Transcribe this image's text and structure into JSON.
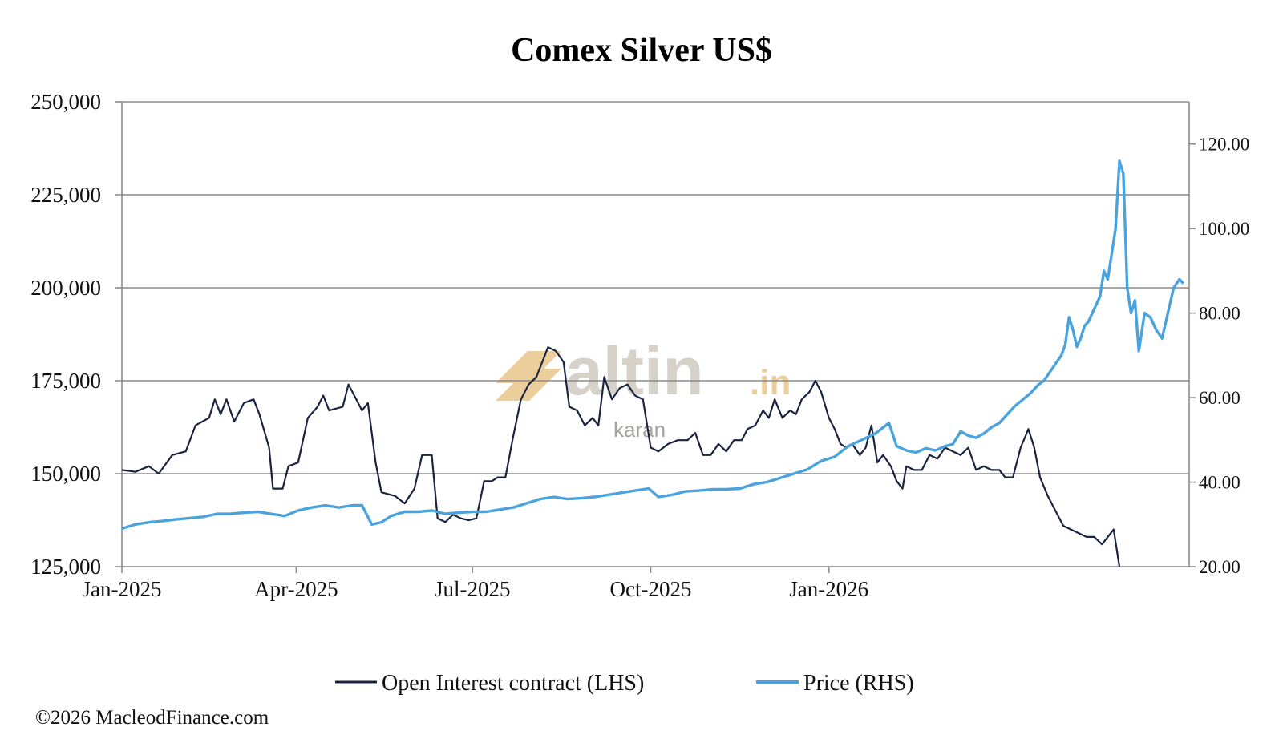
{
  "chart_data": {
    "type": "line",
    "title": "Comex Silver US$",
    "x_ticks": [
      "Jan-2025",
      "Apr-2025",
      "Jul-2025",
      "Oct-2025",
      "Jan-2026"
    ],
    "y_left": {
      "ylim": [
        125000,
        250000
      ],
      "ticks": [
        125000,
        150000,
        175000,
        200000,
        225000,
        250000
      ],
      "tick_labels": [
        "125,000",
        "150,000",
        "175,000",
        "200,000",
        "225,000",
        "250,000"
      ]
    },
    "y_right": {
      "ylim": [
        20,
        130
      ],
      "ticks": [
        20,
        40,
        60,
        80,
        100,
        120
      ],
      "tick_labels": [
        "20.00",
        "40.00",
        "60.00",
        "80.00",
        "100.00",
        "120.00"
      ]
    },
    "grid": true,
    "legend_position": "bottom",
    "series": [
      {
        "name": "Open Interest contract (LHS)",
        "axis": "left",
        "color": "#1a2440",
        "points": [
          [
            "2025-01-01",
            151000
          ],
          [
            "2025-01-08",
            150500
          ],
          [
            "2025-01-15",
            152000
          ],
          [
            "2025-01-20",
            150000
          ],
          [
            "2025-01-27",
            155000
          ],
          [
            "2025-02-03",
            156000
          ],
          [
            "2025-02-08",
            163000
          ],
          [
            "2025-02-15",
            165000
          ],
          [
            "2025-02-18",
            170000
          ],
          [
            "2025-02-21",
            166000
          ],
          [
            "2025-02-24",
            170000
          ],
          [
            "2025-02-28",
            164000
          ],
          [
            "2025-03-05",
            169000
          ],
          [
            "2025-03-10",
            170000
          ],
          [
            "2025-03-13",
            166000
          ],
          [
            "2025-03-18",
            157000
          ],
          [
            "2025-03-20",
            146000
          ],
          [
            "2025-03-25",
            146000
          ],
          [
            "2025-03-28",
            152000
          ],
          [
            "2025-04-02",
            153000
          ],
          [
            "2025-04-07",
            165000
          ],
          [
            "2025-04-12",
            168000
          ],
          [
            "2025-04-15",
            171000
          ],
          [
            "2025-04-18",
            167000
          ],
          [
            "2025-04-25",
            168000
          ],
          [
            "2025-04-28",
            174000
          ],
          [
            "2025-05-02",
            170000
          ],
          [
            "2025-05-05",
            167000
          ],
          [
            "2025-05-08",
            169000
          ],
          [
            "2025-05-12",
            153000
          ],
          [
            "2025-05-15",
            145000
          ],
          [
            "2025-05-22",
            144000
          ],
          [
            "2025-05-27",
            142000
          ],
          [
            "2025-06-01",
            146000
          ],
          [
            "2025-06-05",
            155000
          ],
          [
            "2025-06-10",
            155000
          ],
          [
            "2025-06-13",
            138000
          ],
          [
            "2025-06-17",
            137000
          ],
          [
            "2025-06-21",
            139000
          ],
          [
            "2025-06-25",
            138000
          ],
          [
            "2025-06-29",
            137500
          ],
          [
            "2025-07-03",
            138000
          ],
          [
            "2025-07-07",
            148000
          ],
          [
            "2025-07-11",
            148000
          ],
          [
            "2025-07-14",
            149000
          ],
          [
            "2025-07-18",
            149000
          ],
          [
            "2025-07-22",
            160000
          ],
          [
            "2025-07-26",
            170000
          ],
          [
            "2025-07-30",
            174000
          ],
          [
            "2025-08-03",
            176000
          ],
          [
            "2025-08-06",
            180000
          ],
          [
            "2025-08-09",
            184000
          ],
          [
            "2025-08-13",
            183000
          ],
          [
            "2025-08-17",
            180000
          ],
          [
            "2025-08-20",
            168000
          ],
          [
            "2025-08-24",
            167000
          ],
          [
            "2025-08-28",
            163000
          ],
          [
            "2025-09-01",
            165000
          ],
          [
            "2025-09-04",
            163000
          ],
          [
            "2025-09-07",
            176000
          ],
          [
            "2025-09-11",
            170000
          ],
          [
            "2025-09-15",
            173000
          ],
          [
            "2025-09-19",
            174000
          ],
          [
            "2025-09-23",
            171000
          ],
          [
            "2025-09-27",
            170000
          ],
          [
            "2025-10-01",
            157000
          ],
          [
            "2025-10-05",
            156000
          ],
          [
            "2025-10-10",
            158000
          ],
          [
            "2025-10-15",
            159000
          ],
          [
            "2025-10-20",
            159000
          ],
          [
            "2025-10-24",
            161000
          ],
          [
            "2025-10-28",
            155000
          ],
          [
            "2025-11-01",
            155000
          ],
          [
            "2025-11-05",
            158000
          ],
          [
            "2025-11-09",
            156000
          ],
          [
            "2025-11-13",
            159000
          ],
          [
            "2025-11-17",
            159000
          ],
          [
            "2025-11-20",
            162000
          ],
          [
            "2025-11-24",
            163000
          ],
          [
            "2025-11-28",
            167000
          ],
          [
            "2025-12-01",
            165000
          ],
          [
            "2025-12-04",
            170000
          ],
          [
            "2025-12-08",
            165000
          ],
          [
            "2025-12-12",
            167000
          ],
          [
            "2025-12-15",
            166000
          ],
          [
            "2025-12-18",
            170000
          ],
          [
            "2025-12-22",
            172000
          ],
          [
            "2025-12-25",
            175000
          ],
          [
            "2025-12-28",
            172000
          ],
          [
            "2026-01-01",
            165000
          ],
          [
            "2026-01-04",
            162000
          ],
          [
            "2026-01-07",
            158000
          ],
          [
            "2026-01-10",
            157000
          ],
          [
            "2026-01-13",
            158000
          ],
          [
            "2026-01-17",
            155000
          ],
          [
            "2026-01-20",
            157000
          ],
          [
            "2026-01-23",
            163000
          ],
          [
            "2026-01-26",
            153000
          ],
          [
            "2026-01-29",
            155000
          ],
          [
            "2026-02-02",
            152000
          ],
          [
            "2026-02-05",
            148000
          ],
          [
            "2026-02-08",
            146000
          ],
          [
            "2026-02-10",
            152000
          ],
          [
            "2026-02-14",
            151000
          ],
          [
            "2026-02-18",
            151000
          ],
          [
            "2026-02-22",
            155000
          ],
          [
            "2026-02-26",
            154000
          ],
          [
            "2026-03-02",
            157000
          ],
          [
            "2026-03-06",
            156000
          ],
          [
            "2026-03-10",
            155000
          ],
          [
            "2026-03-14",
            157000
          ],
          [
            "2026-03-18",
            151000
          ],
          [
            "2026-03-22",
            152000
          ],
          [
            "2026-03-26",
            151000
          ],
          [
            "2026-03-30",
            151000
          ],
          [
            "2026-04-02",
            149000
          ],
          [
            "2026-04-06",
            149000
          ],
          [
            "2026-04-10",
            157000
          ],
          [
            "2026-04-14",
            162000
          ],
          [
            "2026-04-17",
            157000
          ],
          [
            "2026-04-20",
            149000
          ],
          [
            "2026-04-24",
            144000
          ],
          [
            "2026-04-28",
            140000
          ],
          [
            "2026-05-02",
            136000
          ],
          [
            "2026-05-06",
            135000
          ],
          [
            "2026-05-10",
            134000
          ],
          [
            "2026-05-14",
            133000
          ],
          [
            "2026-05-18",
            133000
          ],
          [
            "2026-05-22",
            131000
          ],
          [
            "2026-05-25",
            133000
          ],
          [
            "2026-05-28",
            135000
          ],
          [
            "2026-05-31",
            124000
          ]
        ]
      },
      {
        "name": "Price (RHS)",
        "axis": "right",
        "color": "#4aa3dd",
        "points": [
          [
            "2025-01-01",
            29
          ],
          [
            "2025-01-08",
            30
          ],
          [
            "2025-01-15",
            30.5
          ],
          [
            "2025-01-22",
            30.8
          ],
          [
            "2025-01-29",
            31.2
          ],
          [
            "2025-02-05",
            31.5
          ],
          [
            "2025-02-12",
            31.8
          ],
          [
            "2025-02-19",
            32.5
          ],
          [
            "2025-02-26",
            32.5
          ],
          [
            "2025-03-05",
            32.8
          ],
          [
            "2025-03-12",
            33
          ],
          [
            "2025-03-19",
            32.5
          ],
          [
            "2025-03-26",
            32
          ],
          [
            "2025-04-02",
            33.3
          ],
          [
            "2025-04-09",
            34
          ],
          [
            "2025-04-16",
            34.5
          ],
          [
            "2025-04-23",
            34
          ],
          [
            "2025-04-30",
            34.5
          ],
          [
            "2025-05-05",
            34.5
          ],
          [
            "2025-05-10",
            30
          ],
          [
            "2025-05-15",
            30.5
          ],
          [
            "2025-05-20",
            32
          ],
          [
            "2025-05-27",
            33
          ],
          [
            "2025-06-03",
            33
          ],
          [
            "2025-06-10",
            33.3
          ],
          [
            "2025-06-17",
            32.5
          ],
          [
            "2025-06-24",
            32.8
          ],
          [
            "2025-07-01",
            33
          ],
          [
            "2025-07-08",
            33
          ],
          [
            "2025-07-15",
            33.5
          ],
          [
            "2025-07-22",
            34
          ],
          [
            "2025-07-29",
            35
          ],
          [
            "2025-08-05",
            36
          ],
          [
            "2025-08-12",
            36.5
          ],
          [
            "2025-08-19",
            36
          ],
          [
            "2025-08-26",
            36.2
          ],
          [
            "2025-09-02",
            36.5
          ],
          [
            "2025-09-09",
            37
          ],
          [
            "2025-09-16",
            37.5
          ],
          [
            "2025-09-23",
            38
          ],
          [
            "2025-09-30",
            38.5
          ],
          [
            "2025-10-05",
            36.5
          ],
          [
            "2025-10-12",
            37
          ],
          [
            "2025-10-19",
            37.8
          ],
          [
            "2025-10-26",
            38
          ],
          [
            "2025-11-02",
            38.3
          ],
          [
            "2025-11-09",
            38.3
          ],
          [
            "2025-11-16",
            38.5
          ],
          [
            "2025-11-23",
            39.5
          ],
          [
            "2025-11-30",
            40
          ],
          [
            "2025-12-07",
            41
          ],
          [
            "2025-12-14",
            42
          ],
          [
            "2025-12-21",
            43
          ],
          [
            "2025-12-28",
            45
          ],
          [
            "2026-01-04",
            46
          ],
          [
            "2026-01-11",
            48.5
          ],
          [
            "2026-01-18",
            50
          ],
          [
            "2026-01-25",
            51.5
          ],
          [
            "2026-02-01",
            54
          ],
          [
            "2026-02-05",
            48.5
          ],
          [
            "2026-02-10",
            47.5
          ],
          [
            "2026-02-15",
            47
          ],
          [
            "2026-02-20",
            48
          ],
          [
            "2026-02-25",
            47.5
          ],
          [
            "2026-03-02",
            48.5
          ],
          [
            "2026-03-06",
            49
          ],
          [
            "2026-03-10",
            52
          ],
          [
            "2026-03-14",
            51
          ],
          [
            "2026-03-18",
            50.5
          ],
          [
            "2026-03-22",
            51.5
          ],
          [
            "2026-03-26",
            53
          ],
          [
            "2026-03-30",
            54
          ],
          [
            "2026-04-03",
            56
          ],
          [
            "2026-04-07",
            58
          ],
          [
            "2026-04-11",
            59.5
          ],
          [
            "2026-04-15",
            61
          ],
          [
            "2026-04-19",
            63
          ],
          [
            "2026-04-22",
            64
          ],
          [
            "2026-04-25",
            66
          ],
          [
            "2026-04-28",
            68
          ],
          [
            "2026-05-01",
            70
          ],
          [
            "2026-05-03",
            72.5
          ],
          [
            "2026-05-05",
            79
          ],
          [
            "2026-05-07",
            76
          ],
          [
            "2026-05-09",
            72
          ],
          [
            "2026-05-11",
            74
          ],
          [
            "2026-05-13",
            77
          ],
          [
            "2026-05-15",
            78
          ],
          [
            "2026-05-17",
            80
          ],
          [
            "2026-05-19",
            82
          ],
          [
            "2026-05-21",
            84
          ],
          [
            "2026-05-23",
            90
          ],
          [
            "2026-05-25",
            88
          ],
          [
            "2026-05-27",
            94
          ],
          [
            "2026-05-29",
            100
          ],
          [
            "2026-05-31",
            116
          ],
          [
            "2026-06-02",
            113
          ],
          [
            "2026-06-04",
            86
          ],
          [
            "2026-06-06",
            80
          ],
          [
            "2026-06-08",
            83
          ],
          [
            "2026-06-10",
            71
          ],
          [
            "2026-06-13",
            80
          ],
          [
            "2026-06-16",
            79
          ],
          [
            "2026-06-19",
            76
          ],
          [
            "2026-06-22",
            74
          ],
          [
            "2026-06-25",
            80
          ],
          [
            "2026-06-28",
            86
          ],
          [
            "2026-07-01",
            88
          ],
          [
            "2026-07-03",
            87
          ]
        ]
      }
    ]
  },
  "footer": {
    "copyright": "©2026 MacleodFinance.com"
  },
  "watermark": {
    "brand": "altin",
    "suffix": ".in",
    "sub": "karan",
    "color_gold": "#e8c68a",
    "color_gray": "#cfcac0"
  }
}
